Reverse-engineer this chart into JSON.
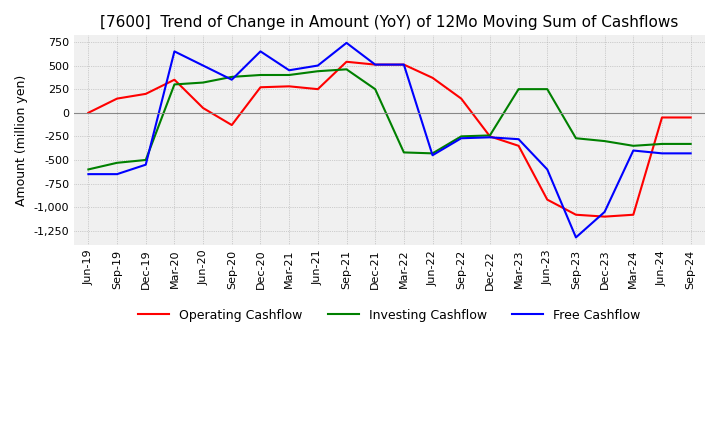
{
  "title": "[7600]  Trend of Change in Amount (YoY) of 12Mo Moving Sum of Cashflows",
  "ylabel": "Amount (million yen)",
  "x_labels": [
    "Jun-19",
    "Sep-19",
    "Dec-19",
    "Mar-20",
    "Jun-20",
    "Sep-20",
    "Dec-20",
    "Mar-21",
    "Jun-21",
    "Sep-21",
    "Dec-21",
    "Mar-22",
    "Jun-22",
    "Sep-22",
    "Dec-22",
    "Mar-23",
    "Jun-23",
    "Sep-23",
    "Dec-23",
    "Mar-24",
    "Jun-24",
    "Sep-24"
  ],
  "operating": [
    0,
    150,
    200,
    350,
    50,
    -130,
    270,
    280,
    250,
    540,
    510,
    510,
    370,
    150,
    -250,
    -350,
    -920,
    -1080,
    -1100,
    -1080,
    -50,
    -50
  ],
  "investing": [
    -600,
    -530,
    -500,
    300,
    320,
    380,
    400,
    400,
    440,
    460,
    250,
    -420,
    -430,
    -250,
    -240,
    250,
    250,
    -270,
    -300,
    -350,
    -330,
    -330
  ],
  "free": [
    -650,
    -650,
    -550,
    650,
    500,
    350,
    650,
    450,
    500,
    740,
    510,
    510,
    -450,
    -270,
    -260,
    -280,
    -600,
    -1320,
    -1050,
    -400,
    -430,
    -430
  ],
  "ylim": [
    -1400,
    820
  ],
  "yticks": [
    750,
    500,
    250,
    0,
    -250,
    -500,
    -750,
    -1000,
    -1250
  ],
  "operating_color": "#ff0000",
  "investing_color": "#008000",
  "free_color": "#0000ff",
  "grid_color": "#aaaaaa",
  "background_color": "#f0f0f0",
  "title_fontsize": 11,
  "label_fontsize": 9,
  "tick_fontsize": 8
}
